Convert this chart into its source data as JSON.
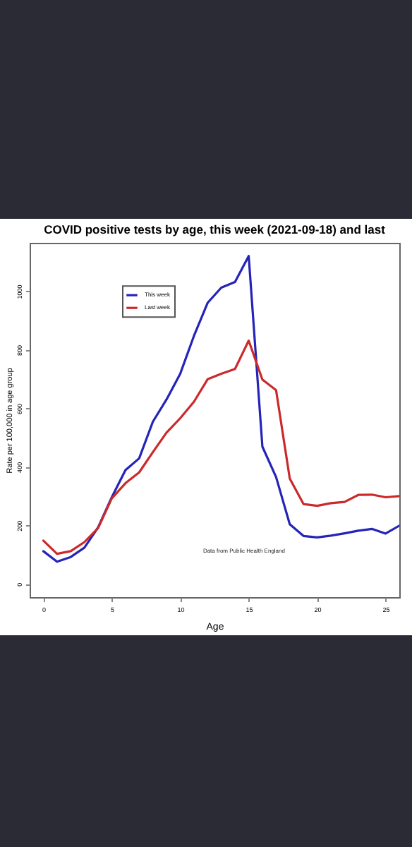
{
  "chart_data": {
    "type": "line",
    "title": "COVID positive tests by age, this week (2021-09-18) and last",
    "xlabel": "Age",
    "ylabel": "Rate per 100,000 in age group",
    "x": [
      0,
      1,
      2,
      3,
      4,
      5,
      6,
      7,
      8,
      9,
      10,
      11,
      12,
      13,
      14,
      15,
      16,
      17,
      18,
      19,
      20,
      21,
      22,
      23,
      24,
      25,
      26
    ],
    "series": [
      {
        "name": "This week",
        "color": "#2424b8",
        "values": [
          112,
          76,
          92,
          124,
          193,
          296,
          389,
          429,
          554,
          630,
          718,
          847,
          960,
          1012,
          1031,
          1120,
          469,
          365,
          204,
          164,
          159,
          165,
          173,
          182,
          188,
          172,
          199
        ]
      },
      {
        "name": "Last week",
        "color": "#cc2a2a",
        "values": [
          148,
          103,
          112,
          143,
          191,
          292,
          344,
          381,
          450,
          517,
          566,
          622,
          699,
          718,
          734,
          831,
          698,
          662,
          360,
          273,
          267,
          276,
          280,
          304,
          305,
          296,
          300
        ]
      }
    ],
    "xlim": [
      -1,
      26
    ],
    "ylim": [
      -45,
      1165
    ],
    "xticks": [
      0,
      5,
      10,
      15,
      20,
      25
    ],
    "yticks": [
      0,
      200,
      400,
      600,
      800,
      1000
    ],
    "legend": "top",
    "grid": false,
    "line_style": "solid",
    "marker": "none",
    "annotations": [
      "Data from Public Health England"
    ]
  }
}
